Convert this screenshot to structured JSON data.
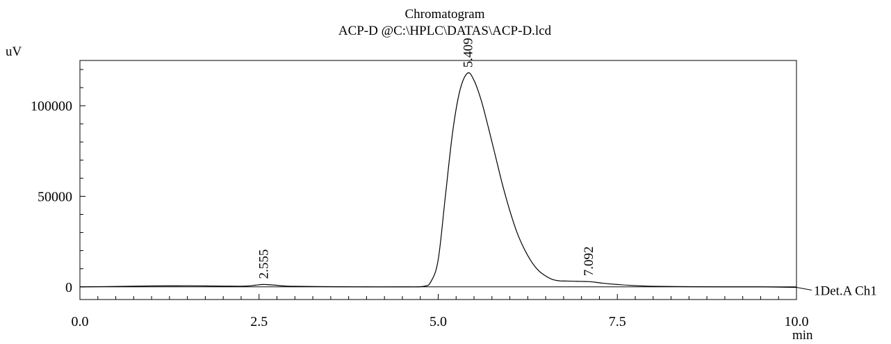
{
  "chart_data": {
    "type": "line",
    "title": "Chromatogram",
    "subtitle": "ACP-D @C:\\HPLC\\DATAS\\ACP-D.lcd",
    "ylabel": "uV",
    "xlabel": "min",
    "xlim": [
      0.0,
      10.0
    ],
    "ylim": [
      -7000,
      125000
    ],
    "x_ticks": [
      "0.0",
      "2.5",
      "5.0",
      "7.5",
      "10.0"
    ],
    "y_ticks": [
      "0",
      "50000",
      "100000"
    ],
    "grid": false,
    "series": [
      {
        "name": "1Det.A Ch1",
        "x": [
          0.0,
          0.5,
          1.0,
          1.5,
          2.0,
          2.3,
          2.45,
          2.555,
          2.7,
          2.85,
          3.0,
          3.5,
          4.0,
          4.5,
          4.8,
          4.9,
          5.0,
          5.1,
          5.2,
          5.3,
          5.409,
          5.5,
          5.6,
          5.7,
          5.8,
          5.9,
          6.0,
          6.1,
          6.2,
          6.3,
          6.4,
          6.5,
          6.6,
          6.7,
          6.8,
          6.9,
          7.0,
          7.092,
          7.2,
          7.3,
          7.5,
          7.7,
          8.0,
          8.5,
          9.0,
          9.5,
          10.0
        ],
        "y": [
          0,
          200,
          500,
          600,
          400,
          400,
          900,
          1300,
          1000,
          500,
          300,
          100,
          0,
          0,
          300,
          3000,
          15000,
          50000,
          85000,
          108000,
          118000,
          114000,
          103000,
          88000,
          72000,
          56000,
          42000,
          30000,
          21000,
          14000,
          9000,
          6000,
          4000,
          3300,
          3200,
          3100,
          3000,
          2900,
          2500,
          2000,
          1300,
          800,
          300,
          100,
          0,
          0,
          -300
        ]
      }
    ],
    "peak_labels": [
      {
        "x": 2.555,
        "y": 1300,
        "label": "2.555"
      },
      {
        "x": 5.409,
        "y": 118000,
        "label": "5.409"
      },
      {
        "x": 7.092,
        "y": 2900,
        "label": "7.092"
      }
    ]
  }
}
